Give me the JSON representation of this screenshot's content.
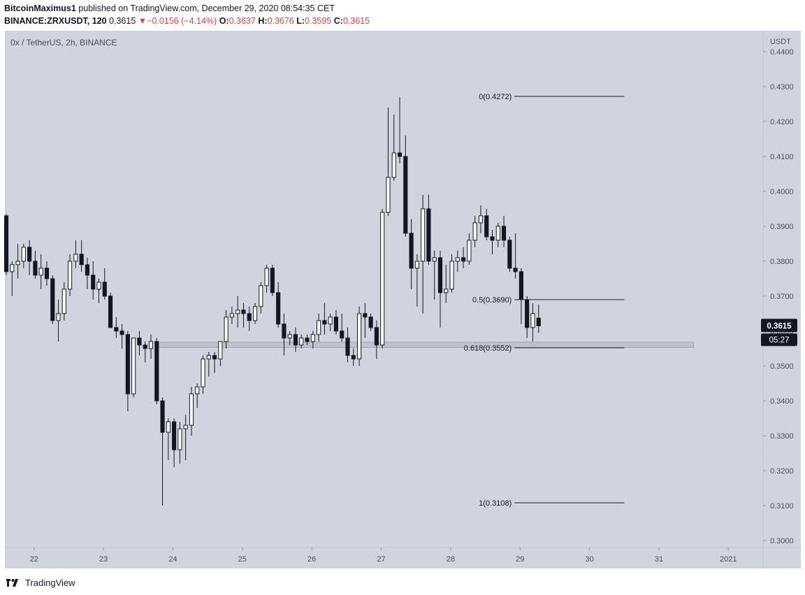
{
  "header": {
    "author": "BitcoinMaximus1",
    "published_text": "published on TradingView.com, December 29, 2020 08:54:35 CET",
    "symbol": "BINANCE:ZRXUSDT, 120",
    "last": "0.3615",
    "change_arrow": "▼",
    "change": "−0.0156 (−4.14%)",
    "o_label": "O:",
    "o_value": "0.3637",
    "h_label": "H:",
    "h_value": "0.3676",
    "l_label": "L:",
    "l_value": "0.3595",
    "c_label": "C:",
    "c_value": "0.3615"
  },
  "footer": {
    "brand": "TradingView"
  },
  "colors": {
    "plot_bg": "#d1d4dc",
    "up_candle": "#ffffff",
    "down_candle": "#131722",
    "text_red": "#e0403a",
    "price_tag_bg": "#131722",
    "support_zone": "#bfc2ca"
  },
  "chart_data": {
    "type": "candlestick",
    "title": "0x / TetherUS, 2h, BINANCE",
    "axis_unit": "USDT",
    "y_range": [
      0.298,
      0.446
    ],
    "y_ticks": [
      "0.4400",
      "0.4300",
      "0.4200",
      "0.4100",
      "0.4000",
      "0.3900",
      "0.3800",
      "0.3700",
      "0.3600",
      "0.3500",
      "0.3400",
      "0.3300",
      "0.3200",
      "0.3100",
      "0.3000"
    ],
    "x_ticks": [
      "22",
      "23",
      "24",
      "25",
      "26",
      "27",
      "28",
      "29",
      "30",
      "31",
      "2021"
    ],
    "x_tick_days": [
      22,
      23,
      24,
      25,
      26,
      27,
      28,
      29,
      30,
      31,
      32
    ],
    "x_range_days": [
      21.58,
      32.5
    ],
    "last_price_label": "0.3615",
    "countdown_label": "05:27",
    "fib_levels": [
      {
        "label": "0(0.4272)",
        "value": 0.4272
      },
      {
        "label": "0.5(0.3690)",
        "value": 0.369
      },
      {
        "label": "0.618(0.3552)",
        "value": 0.3552
      },
      {
        "label": "1(0.3108)",
        "value": 0.3108
      }
    ],
    "fib_x_range_days": [
      28.92,
      30.5
    ],
    "support_zone": {
      "from": 0.3553,
      "to": 0.3568,
      "x_from_day": 23.78,
      "x_to_day": 31.5
    },
    "candles": [
      [
        0.393,
        0.3935,
        0.376,
        0.377
      ],
      [
        0.377,
        0.38,
        0.37,
        0.379
      ],
      [
        0.379,
        0.385,
        0.375,
        0.38
      ],
      [
        0.38,
        0.385,
        0.378,
        0.384
      ],
      [
        0.384,
        0.386,
        0.376,
        0.38
      ],
      [
        0.38,
        0.383,
        0.375,
        0.376
      ],
      [
        0.376,
        0.382,
        0.372,
        0.378
      ],
      [
        0.378,
        0.38,
        0.373,
        0.375
      ],
      [
        0.375,
        0.376,
        0.362,
        0.363
      ],
      [
        0.363,
        0.369,
        0.357,
        0.365
      ],
      [
        0.365,
        0.374,
        0.363,
        0.372
      ],
      [
        0.372,
        0.382,
        0.37,
        0.38
      ],
      [
        0.38,
        0.386,
        0.378,
        0.382
      ],
      [
        0.382,
        0.386,
        0.377,
        0.379
      ],
      [
        0.379,
        0.381,
        0.372,
        0.376
      ],
      [
        0.376,
        0.38,
        0.369,
        0.372
      ],
      [
        0.372,
        0.375,
        0.368,
        0.374
      ],
      [
        0.374,
        0.378,
        0.369,
        0.37
      ],
      [
        0.37,
        0.371,
        0.362,
        0.361
      ],
      [
        0.361,
        0.364,
        0.358,
        0.36
      ],
      [
        0.36,
        0.362,
        0.355,
        0.359
      ],
      [
        0.359,
        0.36,
        0.337,
        0.342
      ],
      [
        0.342,
        0.358,
        0.341,
        0.358
      ],
      [
        0.358,
        0.36,
        0.353,
        0.356
      ],
      [
        0.356,
        0.357,
        0.351,
        0.355
      ],
      [
        0.355,
        0.359,
        0.352,
        0.357
      ],
      [
        0.357,
        0.358,
        0.339,
        0.34
      ],
      [
        0.34,
        0.341,
        0.31,
        0.331
      ],
      [
        0.331,
        0.335,
        0.323,
        0.334
      ],
      [
        0.334,
        0.335,
        0.321,
        0.326
      ],
      [
        0.326,
        0.334,
        0.322,
        0.332
      ],
      [
        0.332,
        0.336,
        0.323,
        0.333
      ],
      [
        0.333,
        0.344,
        0.33,
        0.342
      ],
      [
        0.342,
        0.345,
        0.338,
        0.344
      ],
      [
        0.344,
        0.353,
        0.342,
        0.352
      ],
      [
        0.352,
        0.354,
        0.347,
        0.353
      ],
      [
        0.353,
        0.354,
        0.348,
        0.352
      ],
      [
        0.352,
        0.356,
        0.35,
        0.357
      ],
      [
        0.357,
        0.366,
        0.355,
        0.364
      ],
      [
        0.364,
        0.367,
        0.362,
        0.365
      ],
      [
        0.365,
        0.37,
        0.361,
        0.366
      ],
      [
        0.366,
        0.368,
        0.361,
        0.365
      ],
      [
        0.365,
        0.367,
        0.36,
        0.363
      ],
      [
        0.363,
        0.368,
        0.362,
        0.367
      ],
      [
        0.367,
        0.374,
        0.365,
        0.373
      ],
      [
        0.373,
        0.379,
        0.371,
        0.378
      ],
      [
        0.378,
        0.379,
        0.37,
        0.371
      ],
      [
        0.371,
        0.374,
        0.361,
        0.362
      ],
      [
        0.362,
        0.365,
        0.353,
        0.358
      ],
      [
        0.358,
        0.36,
        0.356,
        0.359
      ],
      [
        0.359,
        0.361,
        0.354,
        0.356
      ],
      [
        0.356,
        0.359,
        0.355,
        0.358
      ],
      [
        0.358,
        0.359,
        0.356,
        0.357
      ],
      [
        0.357,
        0.36,
        0.355,
        0.359
      ],
      [
        0.359,
        0.365,
        0.357,
        0.363
      ],
      [
        0.363,
        0.368,
        0.359,
        0.362
      ],
      [
        0.362,
        0.365,
        0.36,
        0.364
      ],
      [
        0.364,
        0.366,
        0.359,
        0.36
      ],
      [
        0.36,
        0.365,
        0.357,
        0.358
      ],
      [
        0.358,
        0.361,
        0.351,
        0.353
      ],
      [
        0.353,
        0.355,
        0.35,
        0.352
      ],
      [
        0.352,
        0.367,
        0.35,
        0.365
      ],
      [
        0.365,
        0.368,
        0.358,
        0.364
      ],
      [
        0.364,
        0.365,
        0.36,
        0.361
      ],
      [
        0.361,
        0.363,
        0.352,
        0.356
      ],
      [
        0.356,
        0.395,
        0.355,
        0.394
      ],
      [
        0.394,
        0.424,
        0.393,
        0.404
      ],
      [
        0.404,
        0.422,
        0.403,
        0.411
      ],
      [
        0.411,
        0.427,
        0.408,
        0.41
      ],
      [
        0.41,
        0.416,
        0.387,
        0.388
      ],
      [
        0.388,
        0.392,
        0.372,
        0.378
      ],
      [
        0.378,
        0.382,
        0.367,
        0.38
      ],
      [
        0.38,
        0.399,
        0.365,
        0.395
      ],
      [
        0.395,
        0.399,
        0.379,
        0.38
      ],
      [
        0.38,
        0.383,
        0.369,
        0.381
      ],
      [
        0.381,
        0.383,
        0.361,
        0.371
      ],
      [
        0.371,
        0.379,
        0.368,
        0.372
      ],
      [
        0.372,
        0.382,
        0.371,
        0.38
      ],
      [
        0.38,
        0.383,
        0.377,
        0.381
      ],
      [
        0.381,
        0.384,
        0.378,
        0.38
      ],
      [
        0.38,
        0.388,
        0.379,
        0.386
      ],
      [
        0.386,
        0.393,
        0.384,
        0.391
      ],
      [
        0.391,
        0.396,
        0.388,
        0.393
      ],
      [
        0.393,
        0.395,
        0.386,
        0.387
      ],
      [
        0.387,
        0.389,
        0.382,
        0.386
      ],
      [
        0.386,
        0.391,
        0.384,
        0.39
      ],
      [
        0.39,
        0.393,
        0.384,
        0.386
      ],
      [
        0.386,
        0.387,
        0.377,
        0.378
      ],
      [
        0.378,
        0.388,
        0.375,
        0.377
      ],
      [
        0.377,
        0.378,
        0.362,
        0.369
      ],
      [
        0.369,
        0.37,
        0.358,
        0.361
      ],
      [
        0.361,
        0.368,
        0.357,
        0.365
      ],
      [
        0.3637,
        0.3676,
        0.3595,
        0.3615
      ]
    ]
  }
}
